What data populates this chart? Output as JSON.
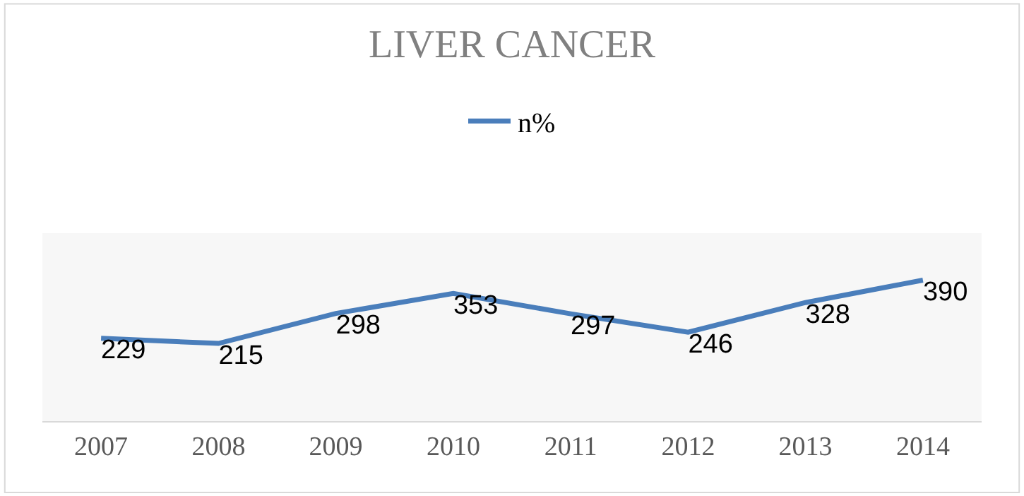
{
  "chart_data": {
    "type": "line",
    "title": "LIVER CANCER",
    "categories": [
      "2007",
      "2008",
      "2009",
      "2010",
      "2011",
      "2012",
      "2013",
      "2014"
    ],
    "series": [
      {
        "name": "n%",
        "color": "#4a7ebb",
        "values": [
          229,
          215,
          298,
          353,
          297,
          246,
          328,
          390
        ]
      }
    ],
    "ylim": [
      0,
      520
    ],
    "data_labels": true,
    "legend": "top",
    "grid": false,
    "marker": "none",
    "line_style": "solid"
  }
}
